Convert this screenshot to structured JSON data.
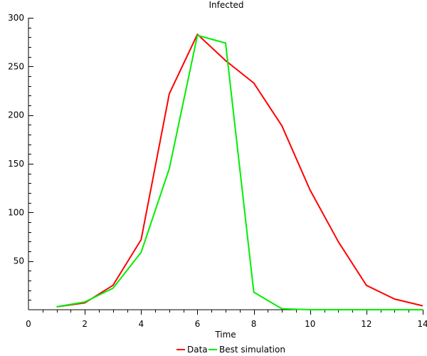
{
  "chart_data": {
    "type": "line",
    "title": "Infected",
    "xlabel": "Time",
    "ylabel": "",
    "xlim": [
      0,
      14
    ],
    "ylim": [
      0,
      300
    ],
    "xticks": [
      0,
      2,
      4,
      6,
      8,
      10,
      12,
      14
    ],
    "yticks": [
      50,
      100,
      150,
      200,
      250,
      300
    ],
    "grid": false,
    "legend_position": "bottom-center",
    "series": [
      {
        "name": "Data",
        "color": "#ff0000",
        "x": [
          1,
          2,
          3,
          4,
          5,
          6,
          7,
          8,
          9,
          10,
          11,
          12,
          13,
          14
        ],
        "y": [
          3,
          7,
          25,
          72,
          222,
          283,
          256,
          233,
          189,
          123,
          70,
          25,
          11,
          4
        ]
      },
      {
        "name": "Best simulation",
        "color": "#00ee00",
        "x": [
          1,
          2,
          3,
          4,
          5,
          6,
          7,
          8,
          9,
          10,
          11,
          12,
          13,
          14
        ],
        "y": [
          3,
          8,
          22,
          59,
          145,
          282,
          274,
          18,
          1,
          0,
          0,
          0,
          0,
          0
        ]
      }
    ]
  }
}
